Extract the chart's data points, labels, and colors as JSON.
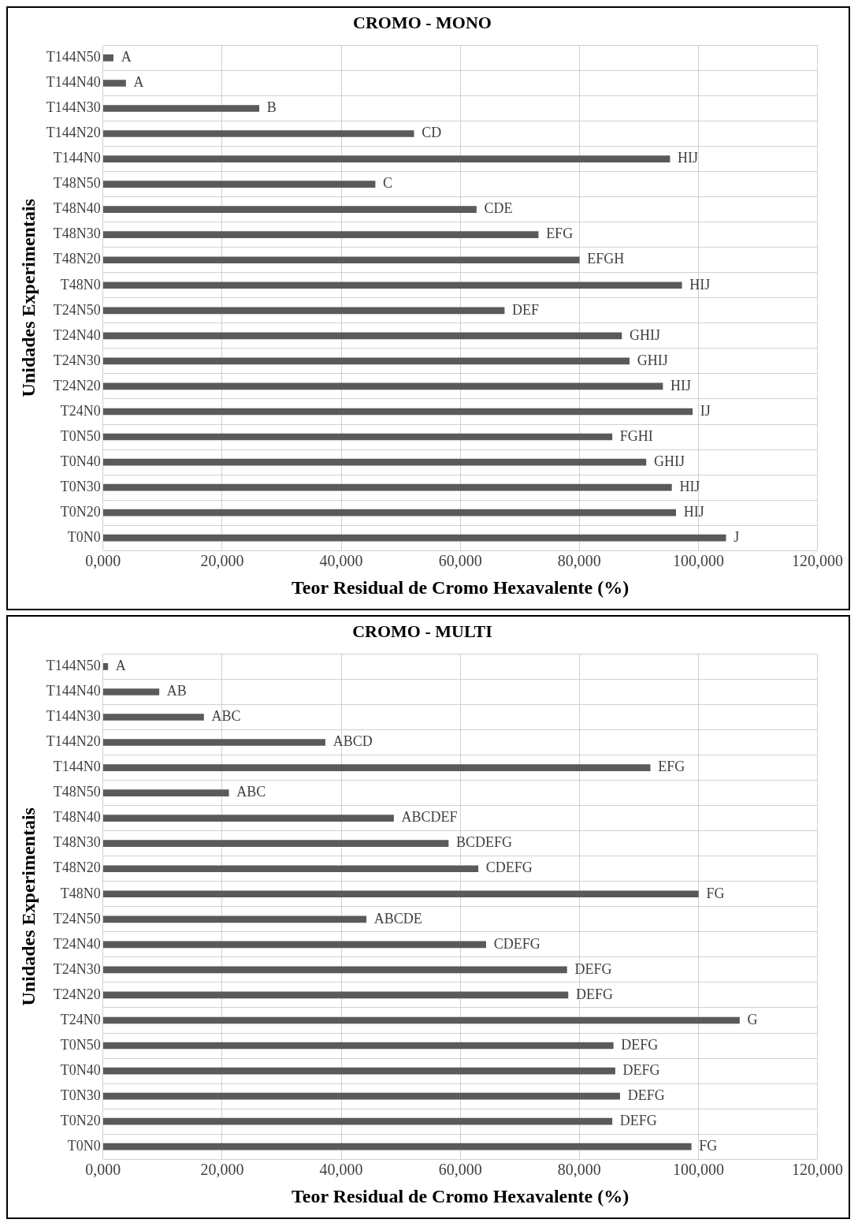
{
  "chart_data": [
    {
      "type": "bar",
      "orientation": "horizontal",
      "title": "CROMO - MONO",
      "xlabel": "Teor Residual de Cromo Hexavalente (%)",
      "ylabel": "Unidades Experimentais",
      "grid": true,
      "legend": false,
      "categories": [
        "T144N50",
        "T144N40",
        "T144N30",
        "T144N20",
        "T144N0",
        "T48N50",
        "T48N40",
        "T48N30",
        "T48N20",
        "T48N0",
        "T24N50",
        "T24N40",
        "T24N30",
        "T24N20",
        "T24N0",
        "T0N50",
        "T0N40",
        "T0N30",
        "T0N20",
        "T0N0"
      ],
      "xlim": [
        0,
        120
      ],
      "xticks": [
        {
          "value": 0,
          "label": "0,000"
        },
        {
          "value": 20,
          "label": "20,000"
        },
        {
          "value": 40,
          "label": "40,000"
        },
        {
          "value": 60,
          "label": "60,000"
        },
        {
          "value": 80,
          "label": "80,000"
        },
        {
          "value": 100,
          "label": "100,000"
        },
        {
          "value": 120,
          "label": "120,000"
        }
      ],
      "series": [
        {
          "color": "#5a5a5a",
          "values": [
            1.7,
            3.8,
            26.2,
            52.2,
            95.2,
            45.7,
            62.7,
            73.1,
            80.0,
            97.2,
            67.4,
            87.1,
            88.4,
            94.0,
            99.0,
            85.5,
            91.2,
            95.5,
            96.2,
            104.6
          ],
          "value_labels": [
            "A",
            "A",
            "B",
            "CD",
            "HIJ",
            "C",
            "CDE",
            "EFG",
            "EFGH",
            "HIJ",
            "DEF",
            "GHIJ",
            "GHIJ",
            "HIJ",
            "IJ",
            "FGHI",
            "GHIJ",
            "HIJ",
            "HIJ",
            "J"
          ]
        }
      ]
    },
    {
      "type": "bar",
      "orientation": "horizontal",
      "title": "CROMO - MULTI",
      "xlabel": "Teor Residual de Cromo Hexavalente (%)",
      "ylabel": "Unidades Experimentais",
      "grid": true,
      "legend": false,
      "categories": [
        "T144N50",
        "T144N40",
        "T144N30",
        "T144N20",
        "T144N0",
        "T48N50",
        "T48N40",
        "T48N30",
        "T48N20",
        "T48N0",
        "T24N50",
        "T24N40",
        "T24N30",
        "T24N20",
        "T24N0",
        "T0N50",
        "T0N40",
        "T0N30",
        "T0N20",
        "T0N0"
      ],
      "xlim": [
        0,
        120
      ],
      "xticks": [
        {
          "value": 0,
          "label": "0,000"
        },
        {
          "value": 20,
          "label": "20,000"
        },
        {
          "value": 40,
          "label": "40,000"
        },
        {
          "value": 60,
          "label": "60,000"
        },
        {
          "value": 80,
          "label": "80,000"
        },
        {
          "value": 100,
          "label": "100,000"
        },
        {
          "value": 120,
          "label": "120,000"
        }
      ],
      "series": [
        {
          "color": "#5a5a5a",
          "values": [
            0.8,
            9.4,
            16.9,
            37.3,
            91.9,
            21.1,
            48.8,
            58.0,
            63.0,
            100.0,
            44.2,
            64.3,
            77.9,
            78.1,
            106.9,
            85.7,
            86.0,
            86.8,
            85.5,
            98.8
          ],
          "value_labels": [
            "A",
            "AB",
            "ABC",
            "ABCD",
            "EFG",
            "ABC",
            "ABCDEF",
            "BCDEFG",
            "CDEFG",
            "FG",
            "ABCDE",
            "CDEFG",
            "DEFG",
            "DEFG",
            "G",
            "DEFG",
            "DEFG",
            "DEFG",
            "DEFG",
            "FG"
          ]
        }
      ]
    }
  ]
}
